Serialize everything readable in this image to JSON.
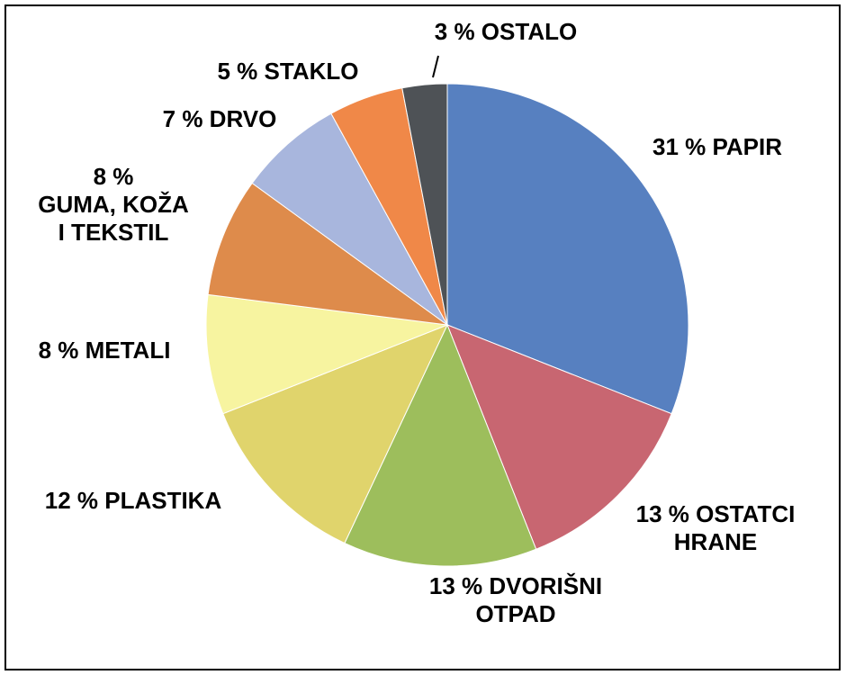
{
  "chart_data": {
    "type": "pie",
    "title": "",
    "unit": "%",
    "slices": [
      {
        "value": 31,
        "color": "#5780C0",
        "label_lines": [
          "31 % PAPIR"
        ]
      },
      {
        "value": 13,
        "color": "#C86671",
        "label_lines": [
          "13 % OSTATCI",
          "HRANE"
        ]
      },
      {
        "value": 13,
        "color": "#9DBE5C",
        "label_lines": [
          "13 % DVORIŠNI",
          "OTPAD"
        ]
      },
      {
        "value": 12,
        "color": "#E0D46C",
        "label_lines": [
          "12 % PLASTIKA"
        ]
      },
      {
        "value": 8,
        "color": "#F7F4A0",
        "label_lines": [
          "8 % METALI"
        ]
      },
      {
        "value": 8,
        "color": "#DE8B4B",
        "label_lines": [
          "8 %",
          "GUMA, KOŽA",
          "I TEKSTIL"
        ]
      },
      {
        "value": 7,
        "color": "#A8B6DD",
        "label_lines": [
          "7 % DRVO"
        ]
      },
      {
        "value": 5,
        "color": "#F08848",
        "label_lines": [
          "5 % STAKLO"
        ]
      },
      {
        "value": 3,
        "color": "#4E5256",
        "label_lines": [
          "3 % OSTALO"
        ]
      }
    ]
  }
}
